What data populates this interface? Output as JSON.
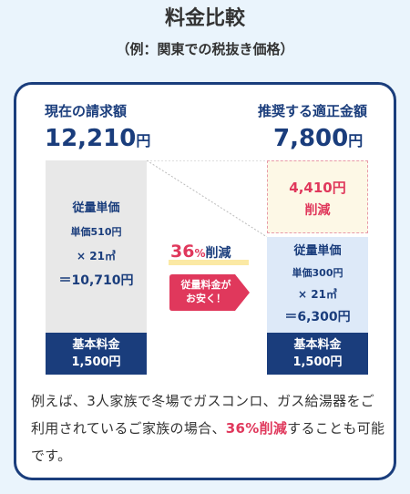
{
  "heading": {
    "title": "料金比較",
    "subtitle": "（例：関東での税抜き価格）"
  },
  "current": {
    "title": "現在の請求額",
    "amount": "12,210",
    "unit": "円",
    "usage_title": "従量単価",
    "unit_price": "単価510円",
    "multiplier": "× 21㎥",
    "usage_total": "＝10,710円",
    "base_label": "基本料金",
    "base_value": "1,500円"
  },
  "recommended": {
    "title": "推奨する適正金額",
    "amount": "7,800",
    "unit": "円",
    "usage_title": "従量単価",
    "unit_price": "単価300円",
    "multiplier": "× 21㎥",
    "usage_total": "＝6,300円",
    "base_label": "基本料金",
    "base_value": "1,500円"
  },
  "savings": {
    "amount": "4,410円",
    "label": "削減",
    "percent": "36",
    "percent_sign": "%",
    "percent_label": "削減",
    "tag_line1": "従量料金が",
    "tag_line2": "お安く！"
  },
  "description": {
    "text_before": "例えば、3人家族で冬場でガスコンロ、ガス給湯器をご利用されているご家族の場合、",
    "highlight": "36%削減",
    "text_after": "することも可能です。"
  },
  "colors": {
    "navy": "#1a3d7c",
    "accent_pink": "#e0385c",
    "background": "#eaf4fc"
  }
}
